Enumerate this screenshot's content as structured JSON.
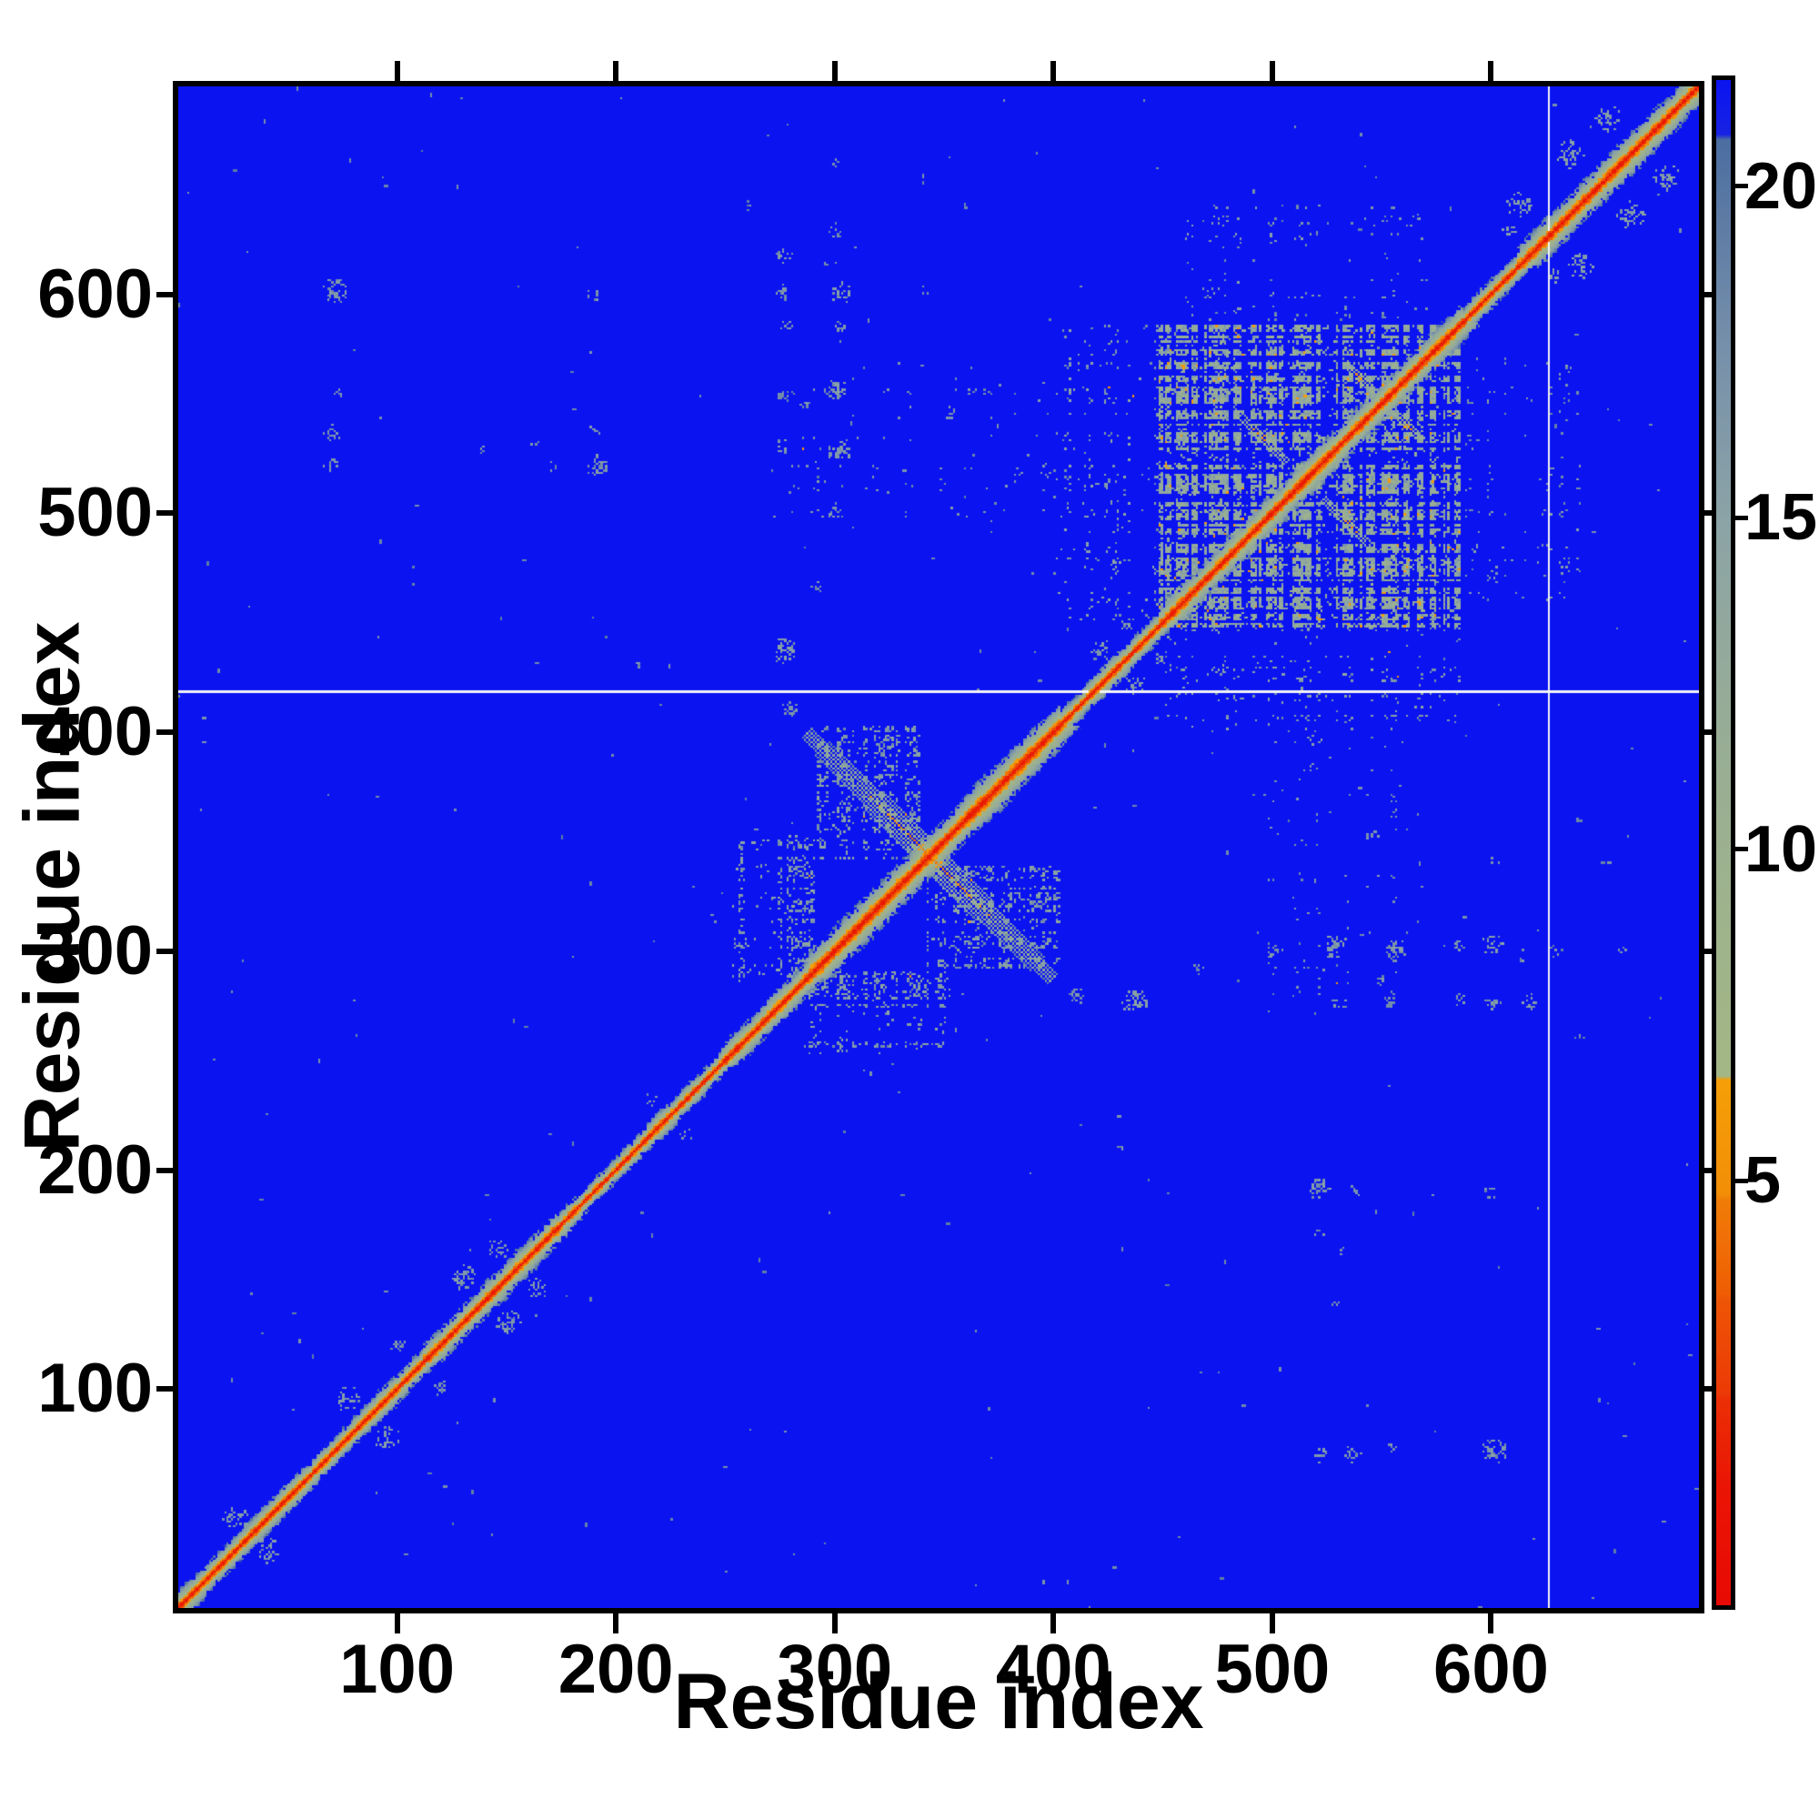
{
  "figure": {
    "background": "#ffffff",
    "frame_color": "#000000"
  },
  "chart_data": {
    "type": "heatmap",
    "title": "",
    "xlabel": "Residue index",
    "ylabel": "Residue index",
    "x_ticks": [
      100,
      200,
      300,
      400,
      500,
      600
    ],
    "y_ticks": [
      100,
      200,
      300,
      400,
      500,
      600
    ],
    "residue_range": [
      0,
      695
    ],
    "grid": false,
    "description": "Symmetric residue-residue distance matrix of a ~695-residue protein. Red/orange band along the main diagonal (short distances), blue background (distances above ~21). Gray-green contact clusters around residues 290-400 (with an anti-diagonal hairpin cross centered near residue 343), a dense plaid-like contact block spanning residues ~448-585, smaller clusters near the C-terminus (600-690), scattered faint long-range contacts, and thin white (missing-data) lines at matrix row 418 and column 626.",
    "colorbar": {
      "ticks": [
        20,
        15,
        10,
        5
      ],
      "vmax": 21.6,
      "vmin": -1.4,
      "stops": [
        [
          -1.4,
          "#e80a04"
        ],
        [
          0.4,
          "#ea1505"
        ],
        [
          1.7,
          "#eb2f05"
        ],
        [
          1.8,
          "#ec3a06"
        ],
        [
          3.2,
          "#ee5505"
        ],
        [
          3.3,
          "#ef5d05"
        ],
        [
          4.7,
          "#f07c06"
        ],
        [
          4.8,
          "#f28e07"
        ],
        [
          6.52,
          "#f59f07"
        ],
        [
          6.58,
          "#a3b685"
        ],
        [
          9.0,
          "#9eb38c"
        ],
        [
          12.0,
          "#97ac96"
        ],
        [
          15.0,
          "#8ba3a6"
        ],
        [
          17.5,
          "#7790aa"
        ],
        [
          19.5,
          "#5d7ba4"
        ],
        [
          20.7,
          "#4b6da1"
        ],
        [
          20.78,
          "#1722e3"
        ],
        [
          21.6,
          "#0b13f1"
        ]
      ]
    },
    "matrix_features": {
      "background_value": 21.6,
      "seed": 1234,
      "diagonal": {
        "base_halfwidth": 3.8,
        "halfwidth_noise": 4.5,
        "slope": 19.5,
        "wide_regions": [
          [
            0,
            58,
            7
          ],
          [
            80,
            108,
            6.5
          ],
          [
            112,
            172,
            8
          ],
          [
            248,
            288,
            8
          ],
          [
            288,
            402,
            10.5
          ],
          [
            402,
            446,
            7
          ],
          [
            448,
            586,
            9
          ],
          [
            588,
            612,
            6.5
          ],
          [
            612,
            695,
            9.5
          ]
        ]
      },
      "anti_streaks": [
        {
          "c": [
            343,
            343
          ],
          "len": 56,
          "w": 5,
          "hot": true
        },
        {
          "c": [
            495,
            534
          ],
          "len": 11,
          "w": 2,
          "hot": true
        },
        {
          "c": [
            540,
            561
          ],
          "len": 6,
          "w": 2,
          "hot": true
        }
      ],
      "clusters": [
        {
          "x": [
            448,
            585
          ],
          "y": [
            448,
            585
          ],
          "density": 0.62,
          "v0": 12.0,
          "vr": 7.5,
          "warm": 0.03,
          "pt": 0.45
        },
        {
          "x": [
            448,
            585
          ],
          "y": [
            400,
            448
          ],
          "density": 0.16,
          "v0": 15.0,
          "vr": 5.0,
          "warm": 0.004,
          "pt": 0.5
        },
        {
          "x": [
            460,
            570
          ],
          "y": [
            588,
            640
          ],
          "density": 0.09,
          "v0": 16.0,
          "vr": 4.0,
          "warm": 0.002,
          "pt": 0.5
        },
        {
          "x": [
            292,
            338
          ],
          "y": [
            342,
            402
          ],
          "density": 0.32,
          "v0": 14.5,
          "vr": 5.5,
          "warm": 0.012,
          "pt": 0.4
        },
        {
          "x": [
            253,
            290
          ],
          "y": [
            288,
            352
          ],
          "density": 0.36,
          "v0": 14.5,
          "vr": 5.5,
          "warm": 0.006,
          "pt": 0.4
        },
        {
          "x": [
            490,
            560
          ],
          "y": [
            260,
            440
          ],
          "density": 0.05,
          "v0": 16.5,
          "vr": 3.5,
          "warm": 0.002,
          "pt": 0.55
        }
      ],
      "blobs": [
        [
          71,
          601,
          6,
          0.5,
          16.5
        ],
        [
          70,
          521,
          4,
          0.45,
          17
        ],
        [
          73,
          554,
          2,
          0.5,
          17.5
        ],
        [
          189,
          599,
          3,
          0.5,
          17
        ],
        [
          191,
          521,
          5,
          0.5,
          16.5
        ],
        [
          172,
          521,
          3,
          0.35,
          17.5
        ],
        [
          210,
          430,
          2,
          0.5,
          17.5
        ],
        [
          276,
          618,
          4,
          0.45,
          16.5
        ],
        [
          276,
          600,
          4,
          0.5,
          16.5
        ],
        [
          277,
          585,
          3,
          0.4,
          17
        ],
        [
          276,
          553,
          3,
          0.45,
          17
        ],
        [
          275,
          530,
          4,
          0.5,
          16.5
        ],
        [
          276,
          437,
          6,
          0.55,
          16
        ],
        [
          279,
          410,
          4,
          0.4,
          17
        ],
        [
          292,
          466,
          3,
          0.4,
          17
        ],
        [
          303,
          600,
          5,
          0.5,
          16
        ],
        [
          303,
          585,
          3,
          0.45,
          17
        ],
        [
          300,
          556,
          5,
          0.5,
          16.5
        ],
        [
          302,
          528,
          6,
          0.5,
          16
        ],
        [
          300,
          500,
          4,
          0.4,
          17
        ],
        [
          310,
          622,
          3,
          0.35,
          17.5
        ],
        [
          340,
          600,
          3,
          0.35,
          17.5
        ],
        [
          397,
          519,
          4,
          0.4,
          17
        ],
        [
          383,
          519,
          3,
          0.35,
          17.5
        ],
        [
          421,
          437,
          5,
          0.5,
          16.5
        ],
        [
          433,
          450,
          4,
          0.4,
          16.5
        ],
        [
          545,
          352,
          3,
          0.4,
          17
        ],
        [
          544,
          330,
          3,
          0.4,
          17
        ],
        [
          541,
          308,
          3,
          0.35,
          17
        ],
        [
          549,
          287,
          3,
          0.3,
          17.5
        ],
        [
          538,
          190,
          3,
          0.35,
          17
        ],
        [
          533,
          162,
          3,
          0.35,
          17
        ],
        [
          529,
          140,
          3,
          0.3,
          17.5
        ],
        [
          536,
          70,
          4,
          0.4,
          17
        ],
        [
          577,
          303,
          2,
          0.4,
          17.5
        ],
        [
          600,
          470,
          3,
          0.35,
          17
        ],
        [
          628,
          300,
          4,
          0.3,
          17.5
        ],
        [
          614,
          297,
          3,
          0.3,
          17.5
        ],
        [
          612,
          640,
          6,
          0.5,
          15.5
        ],
        [
          636,
          663,
          7,
          0.5,
          15.5
        ],
        [
          653,
          680,
          6,
          0.5,
          15.5
        ],
        [
          608,
          628,
          4,
          0.4,
          16
        ],
        [
          95,
          77,
          6,
          0.5,
          16.5
        ],
        [
          150,
          130,
          6,
          0.5,
          16.5
        ],
        [
          164,
          146,
          5,
          0.45,
          16.5
        ],
        [
          40,
          26,
          6,
          0.45,
          16.5
        ],
        [
          231,
          215,
          4,
          0.4,
          17
        ],
        [
          120,
          100,
          4,
          0.4,
          17
        ],
        [
          360,
          640,
          2,
          0.3,
          18
        ],
        [
          300,
          660,
          2,
          0.3,
          18
        ],
        [
          260,
          640,
          2,
          0.3,
          18
        ]
      ],
      "dots": {
        "count": 150,
        "vmin": 16.5,
        "vmax": 19.5,
        "seed": 77
      },
      "white_lines": {
        "row": 418,
        "col": 626,
        "color": "#f2f4f6"
      }
    }
  }
}
